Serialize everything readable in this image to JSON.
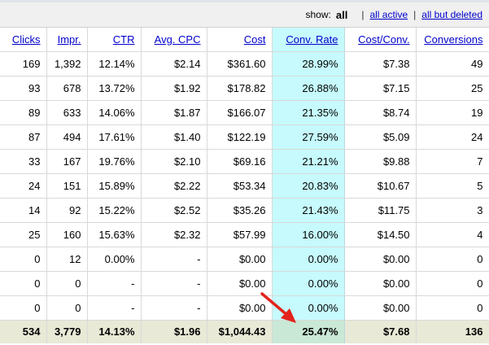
{
  "filter_bar": {
    "show_label": "show:",
    "current": "all",
    "links": [
      "all active",
      "all but deleted"
    ],
    "separator": "|"
  },
  "table": {
    "columns": [
      "Clicks",
      "Impr.",
      "CTR",
      "Avg. CPC",
      "Cost",
      "Conv. Rate",
      "Cost/Conv.",
      "Conversions"
    ],
    "rows": [
      [
        "169",
        "1,392",
        "12.14%",
        "$2.14",
        "$361.60",
        "28.99%",
        "$7.38",
        "49"
      ],
      [
        "93",
        "678",
        "13.72%",
        "$1.92",
        "$178.82",
        "26.88%",
        "$7.15",
        "25"
      ],
      [
        "89",
        "633",
        "14.06%",
        "$1.87",
        "$166.07",
        "21.35%",
        "$8.74",
        "19"
      ],
      [
        "87",
        "494",
        "17.61%",
        "$1.40",
        "$122.19",
        "27.59%",
        "$5.09",
        "24"
      ],
      [
        "33",
        "167",
        "19.76%",
        "$2.10",
        "$69.16",
        "21.21%",
        "$9.88",
        "7"
      ],
      [
        "24",
        "151",
        "15.89%",
        "$2.22",
        "$53.34",
        "20.83%",
        "$10.67",
        "5"
      ],
      [
        "14",
        "92",
        "15.22%",
        "$2.52",
        "$35.26",
        "21.43%",
        "$11.75",
        "3"
      ],
      [
        "25",
        "160",
        "15.63%",
        "$2.32",
        "$57.99",
        "16.00%",
        "$14.50",
        "4"
      ],
      [
        "0",
        "12",
        "0.00%",
        "-",
        "$0.00",
        "0.00%",
        "$0.00",
        "0"
      ],
      [
        "0",
        "0",
        "-",
        "-",
        "$0.00",
        "0.00%",
        "$0.00",
        "0"
      ],
      [
        "0",
        "0",
        "-",
        "-",
        "$0.00",
        "0.00%",
        "$0.00",
        "0"
      ]
    ],
    "totals": [
      "534",
      "3,779",
      "14.13%",
      "$1.96",
      "$1,044.43",
      "25.47%",
      "$7.68",
      "136"
    ]
  },
  "colors": {
    "highlight_column": "#c6fafc",
    "totals_row": "#e8e9d6",
    "link": "#0000cc",
    "arrow": "#e3231c"
  },
  "icons": {
    "annotation": "red-arrow-icon"
  }
}
